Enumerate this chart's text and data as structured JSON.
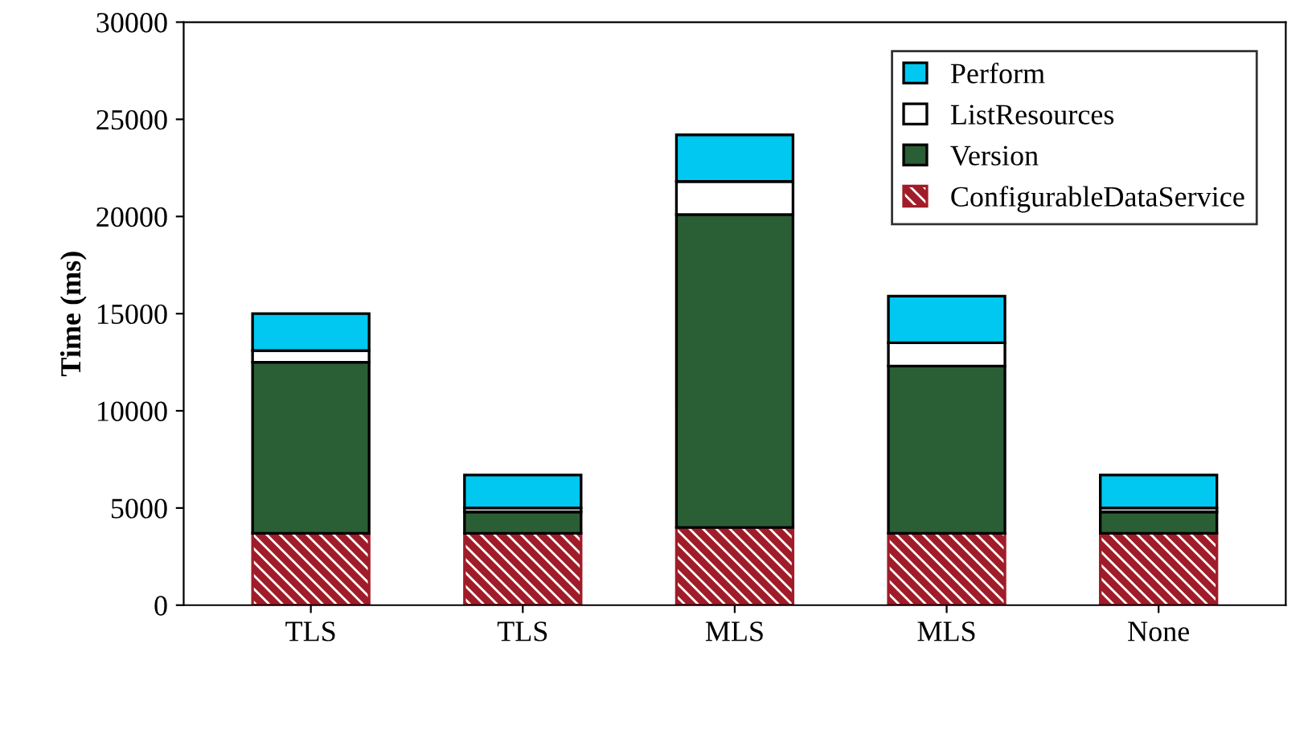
{
  "chart_data": {
    "type": "bar",
    "stacked": true,
    "ylabel": "Time (ms)",
    "categories": [
      "TLS",
      "TLS",
      "MLS",
      "MLS",
      "None"
    ],
    "series": [
      {
        "name": "ConfigurableDataService",
        "color": "#a01c28",
        "values": [
          3700,
          3700,
          4000,
          3700,
          3700
        ]
      },
      {
        "name": "Version",
        "color": "#2a5e34",
        "values": [
          8800,
          1100,
          16100,
          8600,
          1100
        ]
      },
      {
        "name": "ListResources",
        "color": "#ffffff",
        "values": [
          600,
          200,
          1700,
          1200,
          200
        ]
      },
      {
        "name": "Perform",
        "color": "#00c8f0",
        "values": [
          1900,
          1700,
          2400,
          2400,
          1700
        ]
      }
    ],
    "ylim": [
      0,
      30000
    ],
    "yticks": [
      0,
      5000,
      10000,
      15000,
      20000,
      25000,
      30000
    ],
    "grid": false,
    "legend": "top right"
  }
}
